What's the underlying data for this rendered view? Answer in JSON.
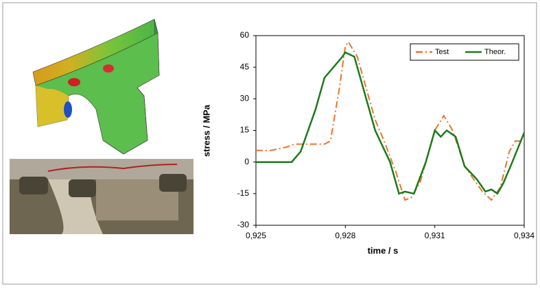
{
  "chart_data": {
    "type": "line",
    "xlabel": "time / s",
    "ylabel": "stress / MPa",
    "xlim": [
      0.925,
      0.934
    ],
    "xticks": [
      {
        "value": 0.925,
        "label": "0,925"
      },
      {
        "value": 0.928,
        "label": "0,928"
      },
      {
        "value": 0.931,
        "label": "0,931"
      },
      {
        "value": 0.934,
        "label": "0,934"
      }
    ],
    "ylim": [
      -30,
      60
    ],
    "yticks": [
      -30,
      -15,
      0,
      15,
      30,
      45,
      60
    ],
    "grid": false,
    "legend": "top-right",
    "series": [
      {
        "name": "Test",
        "color": "#e8742c",
        "dash": "dash-dot",
        "x": [
          0.925,
          0.9255,
          0.926,
          0.9263,
          0.9268,
          0.9273,
          0.9275,
          0.9278,
          0.928,
          0.9281,
          0.9284,
          0.9287,
          0.929,
          0.9293,
          0.9297,
          0.93,
          0.9302,
          0.9305,
          0.9308,
          0.931,
          0.9313,
          0.9316,
          0.932,
          0.9323,
          0.9326,
          0.9329,
          0.9332,
          0.9335,
          0.9337,
          0.934
        ],
        "values": [
          5.5,
          5.5,
          7,
          8.5,
          8.5,
          8.5,
          10,
          35,
          55,
          57,
          50,
          35,
          20,
          10,
          -5,
          -18,
          -17,
          -10,
          5,
          15,
          22,
          15,
          -2,
          -8,
          -14,
          -18,
          -12,
          5,
          10,
          10
        ]
      },
      {
        "name": "Theor.",
        "color": "#1a7a1a",
        "dash": "solid",
        "x": [
          0.925,
          0.9262,
          0.9265,
          0.927,
          0.9273,
          0.9276,
          0.9279,
          0.928,
          0.9283,
          0.9286,
          0.929,
          0.9295,
          0.9298,
          0.93,
          0.9303,
          0.9307,
          0.931,
          0.9312,
          0.9314,
          0.9317,
          0.932,
          0.9324,
          0.9327,
          0.9329,
          0.9331,
          0.9333,
          0.9336,
          0.934
        ],
        "values": [
          0,
          0,
          5,
          25,
          40,
          45,
          50,
          52,
          50,
          35,
          15,
          0,
          -15,
          -14,
          -15,
          0,
          15,
          12,
          15,
          12,
          -2,
          -8,
          -14,
          -13,
          -15,
          -10,
          0,
          14
        ]
      }
    ]
  }
}
